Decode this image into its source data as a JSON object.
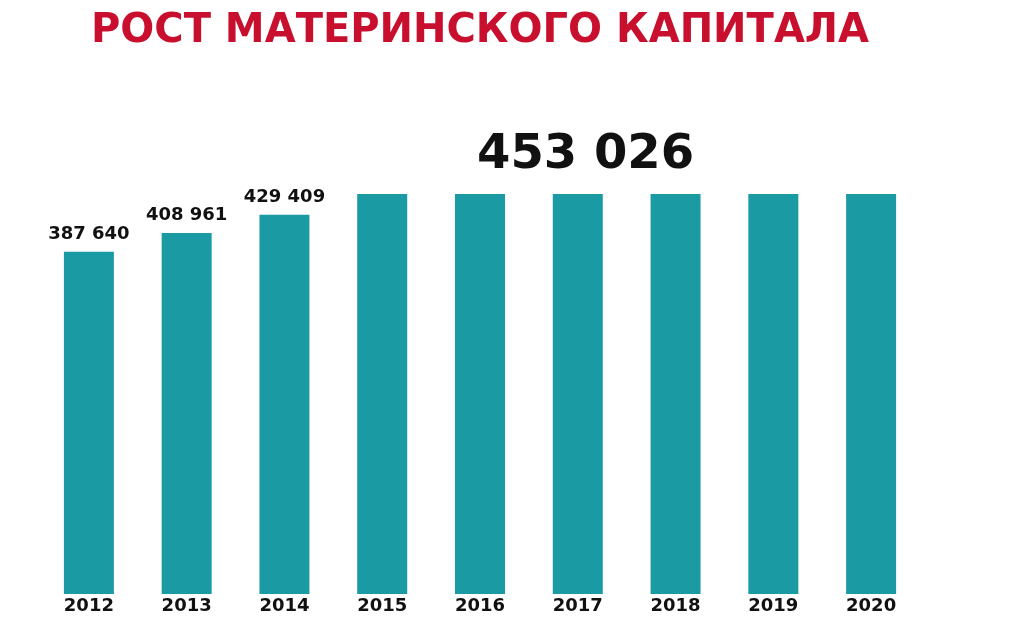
{
  "chart_data": {
    "type": "bar",
    "title": "РОСТ МАТЕРИНСКОГО КАПИТАЛА",
    "categories": [
      "2012",
      "2013",
      "2014",
      "2015",
      "2016",
      "2017",
      "2018",
      "2019",
      "2020"
    ],
    "values": [
      387640,
      408961,
      429409,
      453026,
      453026,
      453026,
      453026,
      453026,
      453026
    ],
    "value_labels": [
      "387 640",
      "408 961",
      "429 409",
      null,
      null,
      null,
      null,
      null,
      null
    ],
    "annotations": [
      "453 026"
    ],
    "color": "#1a9ba3",
    "grid": false,
    "tick_labels": "x"
  }
}
